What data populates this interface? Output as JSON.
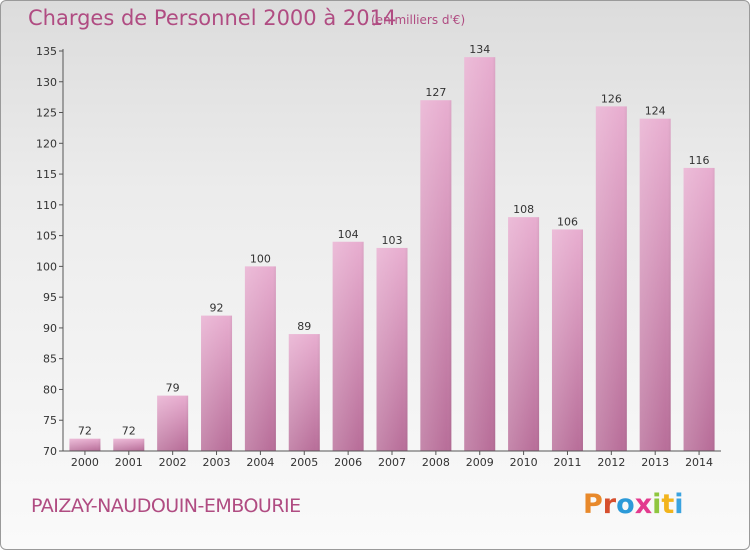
{
  "header": {
    "title": "Charges de Personnel 2000 à 2014",
    "subtitle": "(en milliers d'€)"
  },
  "footer": {
    "commune": "PAIZAY-NAUDOUIN-EMBOURIE",
    "logo_text": "Proxiti",
    "logo_colors": [
      "#e8892b",
      "#d64f2e",
      "#2c9ad8",
      "#e33a8e",
      "#8fc63f",
      "#f2b41c",
      "#3aa3e0"
    ]
  },
  "colors": {
    "bar_top": "#e8aed0",
    "bar_bottom": "#b86e99",
    "accent": "#b04c82"
  },
  "chart_data": {
    "type": "bar",
    "title": "Charges de Personnel 2000 à 2014",
    "subtitle": "(en milliers d'€)",
    "xlabel": "",
    "ylabel": "",
    "categories": [
      "2000",
      "2001",
      "2002",
      "2003",
      "2004",
      "2005",
      "2006",
      "2007",
      "2008",
      "2009",
      "2010",
      "2011",
      "2012",
      "2013",
      "2014"
    ],
    "values": [
      72,
      72,
      79,
      92,
      100,
      89,
      104,
      103,
      127,
      134,
      108,
      106,
      126,
      124,
      116
    ],
    "ylim": [
      70,
      135
    ],
    "yticks": [
      70,
      75,
      80,
      85,
      90,
      95,
      100,
      105,
      110,
      115,
      120,
      125,
      130,
      135
    ],
    "grid": false,
    "data_labels": true
  }
}
